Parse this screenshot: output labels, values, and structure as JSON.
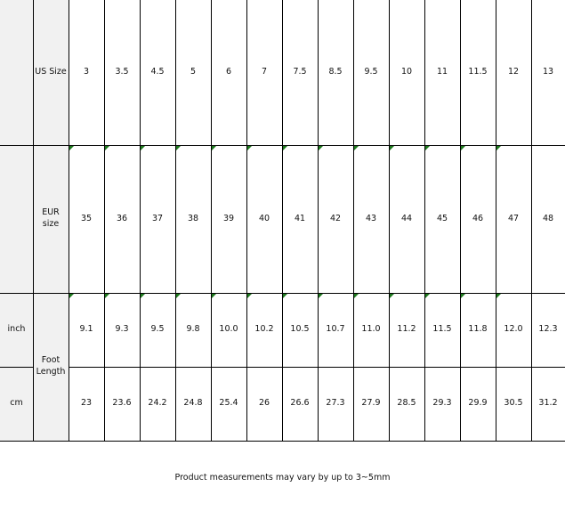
{
  "table": {
    "rows": [
      {
        "label": "US Size",
        "values": [
          "3",
          "3.5",
          "4.5",
          "5",
          "6",
          "7",
          "7.5",
          "8.5",
          "9.5",
          "10",
          "11",
          "11.5",
          "12",
          "13"
        ]
      },
      {
        "label": "EUR size",
        "values": [
          "35",
          "36",
          "37",
          "38",
          "39",
          "40",
          "41",
          "42",
          "43",
          "44",
          "45",
          "46",
          "47",
          "48"
        ]
      },
      {
        "label": "inch",
        "values": [
          "9.1",
          "9.3",
          "9.5",
          "9.8",
          "10.0",
          "10.2",
          "10.5",
          "10.7",
          "11.0",
          "11.2",
          "11.5",
          "11.8",
          "12.0",
          "12.3"
        ]
      },
      {
        "label": "cm",
        "values": [
          "23",
          "23.6",
          "24.2",
          "24.8",
          "25.4",
          "26",
          "26.6",
          "27.3",
          "27.9",
          "28.5",
          "29.3",
          "29.9",
          "30.5",
          "31.2"
        ]
      }
    ],
    "foot_length_label": "Foot Length",
    "flag_color": "#1e7a1e"
  },
  "footer": {
    "note": "Product measurements may vary by up to 3~5mm"
  }
}
